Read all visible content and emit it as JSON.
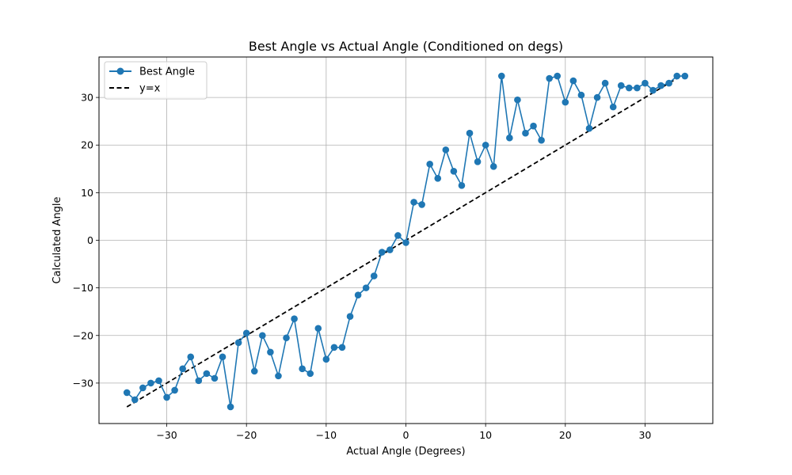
{
  "chart_data": {
    "type": "line",
    "title": "Best Angle vs Actual Angle (Conditioned on degs)",
    "xlabel": "Actual Angle (Degrees)",
    "ylabel": "Calculated Angle",
    "xlim": [
      -38.5,
      38.5
    ],
    "ylim": [
      -38.5,
      38.5
    ],
    "xticks": [
      -30,
      -20,
      -10,
      0,
      10,
      20,
      30
    ],
    "yticks": [
      -30,
      -20,
      -10,
      0,
      10,
      20,
      30
    ],
    "grid": true,
    "legend_position": "top-left",
    "series": [
      {
        "name": "Best Angle",
        "color": "#1f77b4",
        "style": "solid-with-markers",
        "x": [
          -35,
          -34,
          -33,
          -32,
          -31,
          -30,
          -29,
          -28,
          -27,
          -26,
          -25,
          -24,
          -23,
          -22,
          -21,
          -20,
          -19,
          -18,
          -17,
          -16,
          -15,
          -14,
          -13,
          -12,
          -11,
          -10,
          -9,
          -8,
          -7,
          -6,
          -5,
          -4,
          -3,
          -2,
          -1,
          0,
          1,
          2,
          3,
          4,
          5,
          6,
          7,
          8,
          9,
          10,
          11,
          12,
          13,
          14,
          15,
          16,
          17,
          18,
          19,
          20,
          21,
          22,
          23,
          24,
          25,
          26,
          27,
          28,
          29,
          30,
          31,
          32,
          33,
          34,
          35
        ],
        "y": [
          -32,
          -33.5,
          -31,
          -30,
          -29.5,
          -33,
          -31.5,
          -27,
          -24.5,
          -29.5,
          -28,
          -29,
          -24.5,
          -35,
          -21.5,
          -19.5,
          -27.5,
          -20,
          -23.5,
          -28.5,
          -20.5,
          -16.5,
          -27,
          -28,
          -18.5,
          -25,
          -22.5,
          -22.5,
          -16,
          -11.5,
          -10,
          -7.5,
          -2.5,
          -2,
          1,
          -0.5,
          8,
          7.5,
          16,
          13,
          19,
          14.5,
          11.5,
          22.5,
          16.5,
          20,
          15.5,
          34.5,
          21.5,
          29.5,
          22.5,
          24,
          21,
          34,
          34.5,
          29,
          33.5,
          30.5,
          23.5,
          30,
          33,
          28,
          32.5,
          32,
          32,
          33,
          31.5,
          32.5,
          33,
          34.5,
          34.5
        ]
      },
      {
        "name": "y=x",
        "color": "#000000",
        "style": "dashed",
        "x": [
          -35,
          35
        ],
        "y": [
          -35,
          35
        ]
      }
    ]
  }
}
